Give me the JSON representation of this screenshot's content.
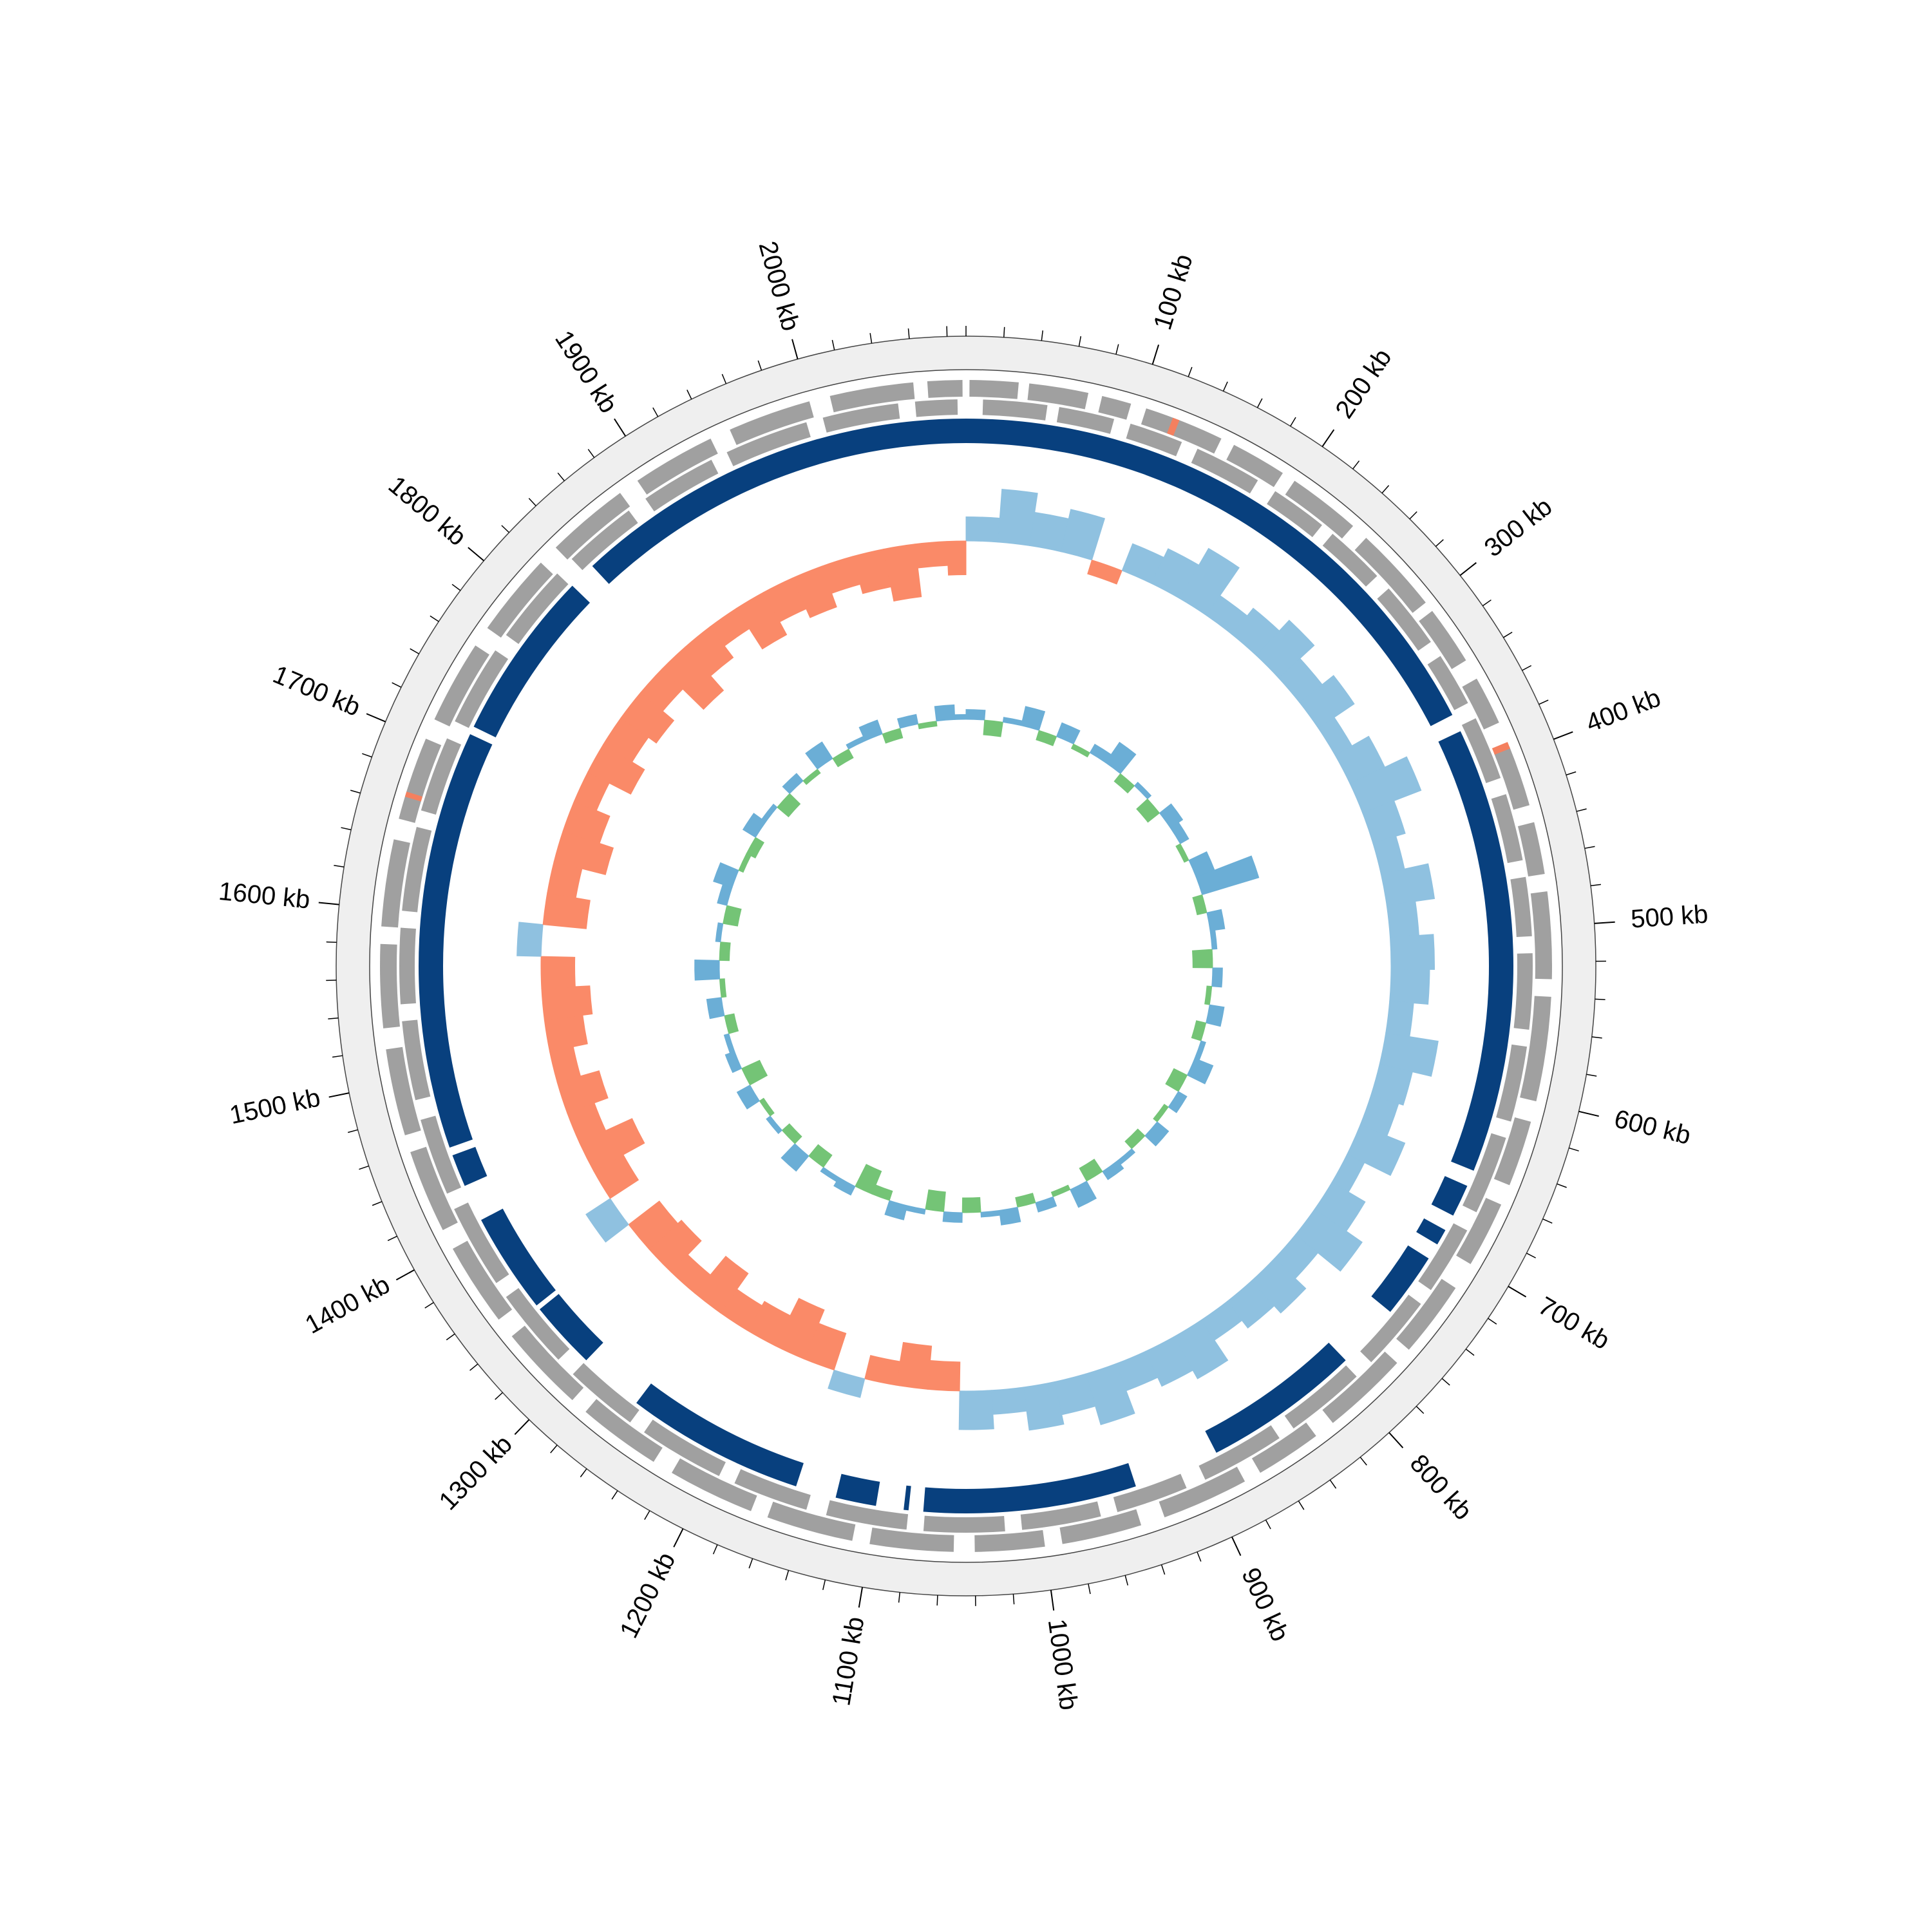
{
  "chart_data": {
    "type": "circos",
    "xlim": [
      0,
      2090
    ],
    "xticks": [
      {
        "value": 100,
        "label": "100 kb"
      },
      {
        "value": 200,
        "label": "200 kb"
      },
      {
        "value": 300,
        "label": "300 kb"
      },
      {
        "value": 400,
        "label": "400 kb"
      },
      {
        "value": 500,
        "label": "500 kb"
      },
      {
        "value": 600,
        "label": "600 kb"
      },
      {
        "value": 700,
        "label": "700 kb"
      },
      {
        "value": 800,
        "label": "800 kb"
      },
      {
        "value": 900,
        "label": "900 kb"
      },
      {
        "value": 1000,
        "label": "1000 kb"
      },
      {
        "value": 1100,
        "label": "1100 kb"
      },
      {
        "value": 1200,
        "label": "1200 kb"
      },
      {
        "value": 1300,
        "label": "1300 kb"
      },
      {
        "value": 1400,
        "label": "1400 kb"
      },
      {
        "value": 1500,
        "label": "1500 kb"
      },
      {
        "value": 1600,
        "label": "1600 kb"
      },
      {
        "value": 1700,
        "label": "1700 kb"
      },
      {
        "value": 1800,
        "label": "1800 kb"
      },
      {
        "value": 1900,
        "label": "1900 kb"
      },
      {
        "value": 2000,
        "label": "2000 kb"
      }
    ],
    "xminor_ticks": [
      0,
      20,
      40,
      60,
      80,
      120,
      140,
      160,
      180,
      220,
      240,
      260,
      280,
      320,
      340,
      360,
      380,
      420,
      440,
      460,
      480,
      520,
      540,
      560,
      580,
      620,
      640,
      660,
      680,
      720,
      740,
      760,
      780,
      820,
      840,
      860,
      880,
      920,
      940,
      960,
      980,
      1020,
      1040,
      1060,
      1080,
      1120,
      1140,
      1160,
      1180,
      1220,
      1240,
      1260,
      1280,
      1320,
      1340,
      1360,
      1380,
      1420,
      1440,
      1460,
      1480,
      1520,
      1540,
      1560,
      1580,
      1620,
      1640,
      1660,
      1680,
      1720,
      1740,
      1760,
      1780,
      1820,
      1840,
      1860,
      1880,
      1920,
      1940,
      1960,
      1980,
      2020,
      2040,
      2060,
      2080
    ],
    "features": {
      "color": "#a0a0a0",
      "highlight_color": "#f4805f",
      "forward": [
        [
          2,
          30
        ],
        [
          36,
          70
        ],
        [
          78,
          95
        ],
        [
          104,
          150
        ],
        [
          158,
          190
        ],
        [
          198,
          240
        ],
        [
          250,
          300
        ],
        [
          306,
          340
        ],
        [
          352,
          380
        ],
        [
          395,
          430
        ],
        [
          440,
          470
        ],
        [
          480,
          530
        ],
        [
          540,
          600
        ],
        [
          612,
          650
        ],
        [
          662,
          700
        ],
        [
          716,
          760
        ],
        [
          770,
          820
        ],
        [
          832,
          870
        ],
        [
          880,
          930
        ],
        [
          944,
          990
        ],
        [
          1000,
          1040
        ],
        [
          1052,
          1100
        ],
        [
          1110,
          1160
        ],
        [
          1170,
          1220
        ],
        [
          1232,
          1280
        ],
        [
          1290,
          1340
        ],
        [
          1352,
          1400
        ],
        [
          1412,
          1460
        ],
        [
          1470,
          1520
        ],
        [
          1532,
          1580
        ],
        [
          1590,
          1640
        ],
        [
          1652,
          1700
        ],
        [
          1712,
          1760
        ],
        [
          1772,
          1820
        ],
        [
          1832,
          1880
        ],
        [
          1892,
          1940
        ],
        [
          1952,
          2000
        ],
        [
          2012,
          2060
        ],
        [
          2068,
          2088
        ]
      ],
      "reverse": [
        [
          10,
          48
        ],
        [
          55,
          88
        ],
        [
          98,
          130
        ],
        [
          140,
          180
        ],
        [
          192,
          226
        ],
        [
          234,
          270
        ],
        [
          280,
          320
        ],
        [
          330,
          362
        ],
        [
          372,
          410
        ],
        [
          420,
          460
        ],
        [
          470,
          505
        ],
        [
          515,
          560
        ],
        [
          570,
          615
        ],
        [
          625,
          672
        ],
        [
          684,
          725
        ],
        [
          735,
          780
        ],
        [
          792,
          840
        ],
        [
          850,
          900
        ],
        [
          912,
          955
        ],
        [
          965,
          1012
        ],
        [
          1022,
          1070
        ],
        [
          1080,
          1128
        ],
        [
          1140,
          1185
        ],
        [
          1195,
          1246
        ],
        [
          1256,
          1300
        ],
        [
          1312,
          1360
        ],
        [
          1370,
          1420
        ],
        [
          1430,
          1476
        ],
        [
          1488,
          1535
        ],
        [
          1545,
          1590
        ],
        [
          1600,
          1650
        ],
        [
          1660,
          1705
        ],
        [
          1716,
          1764
        ],
        [
          1775,
          1822
        ],
        [
          1834,
          1878
        ],
        [
          1890,
          1935
        ],
        [
          1945,
          1995
        ],
        [
          2005,
          2050
        ],
        [
          2060,
          2085
        ]
      ],
      "highlight": [
        [
          120,
          124
        ],
        [
          392,
          396
        ],
        [
          1665,
          1668
        ]
      ]
    },
    "regions": {
      "color": "#08407e",
      "values": [
        [
          0,
          364
        ],
        [
          375,
          650
        ],
        [
          660,
          680
        ],
        [
          690,
          700
        ],
        [
          710,
          750
        ],
        [
          790,
          887
        ],
        [
          940,
          1071
        ],
        [
          1080,
          1083
        ],
        [
          1100,
          1125
        ],
        [
          1150,
          1260
        ],
        [
          1300,
          1342
        ],
        [
          1345,
          1407
        ],
        [
          1430,
          1450
        ],
        [
          1455,
          1713
        ],
        [
          1718,
          1823
        ],
        [
          1840,
          2090
        ]
      ]
    },
    "gc": {
      "x": [
        0,
        25,
        50,
        75,
        100,
        125,
        150,
        175,
        200,
        225,
        250,
        275,
        300,
        325,
        350,
        375,
        400,
        425,
        450,
        475,
        500,
        525,
        550,
        575,
        600,
        625,
        650,
        675,
        700,
        725,
        750,
        775,
        800,
        825,
        850,
        875,
        900,
        925,
        950,
        975,
        1000,
        1025,
        1050,
        1075,
        1100,
        1125,
        1150,
        1175,
        1200,
        1225,
        1250,
        1275,
        1300,
        1325,
        1350,
        1375,
        1400,
        1425,
        1450,
        1475,
        1500,
        1525,
        1550,
        1575,
        1600,
        1625,
        1650,
        1675,
        1700,
        1725,
        1750,
        1775,
        1800,
        1825,
        1850,
        1875,
        1900,
        1925,
        1950,
        1975,
        2000,
        2025,
        2050,
        2075
      ],
      "skew": {
        "ylim": [
          -0.2,
          0.2
        ],
        "pos_color": "#8fc1e0",
        "neg_color": "#fa8a68",
        "values": [
          0.05,
          0.11,
          0.07,
          0.09,
          -0.03,
          0.06,
          0.08,
          0.12,
          0.05,
          0.07,
          0.1,
          0.06,
          0.09,
          0.04,
          0.08,
          0.13,
          0.07,
          0.05,
          0.1,
          0.06,
          0.09,
          0.08,
          0.05,
          0.11,
          0.07,
          0.06,
          0.1,
          0.04,
          0.08,
          0.12,
          0.06,
          0.09,
          0.07,
          0.05,
          0.1,
          0.08,
          0.06,
          0.11,
          0.07,
          0.09,
          0.05,
          0.08,
          -0.06,
          -0.09,
          -0.05,
          0.04,
          -0.08,
          -0.11,
          -0.07,
          -0.06,
          -0.1,
          -0.05,
          -0.09,
          -0.08,
          0.06,
          -0.07,
          -0.12,
          -0.06,
          -0.09,
          -0.05,
          -0.08,
          -0.1,
          -0.07,
          0.05,
          -0.09,
          -0.06,
          -0.11,
          -0.08,
          -0.05,
          -0.1,
          -0.07,
          -0.09,
          -0.06,
          -0.12,
          -0.08,
          -0.05,
          -0.1,
          -0.07,
          -0.09,
          -0.06,
          -0.08,
          -0.11,
          -0.05,
          -0.07
        ]
      },
      "content": {
        "ylim": [
          -15,
          15
        ],
        "pos_color": "#6baed6",
        "neg_color": "#74c476",
        "values": [
          2,
          -3,
          1,
          4,
          -2,
          3,
          -1,
          2,
          5,
          -2,
          1,
          -3,
          3,
          2,
          -1,
          4,
          12,
          -2,
          3,
          1,
          -4,
          2,
          -1,
          3,
          -2,
          1,
          4,
          -3,
          2,
          -1,
          3,
          -2,
          1,
          2,
          -3,
          4,
          -1,
          2,
          -2,
          3,
          1,
          -3,
          2,
          -4,
          1,
          3,
          -2,
          -5,
          2,
          1,
          -3,
          4,
          -2,
          1,
          -1,
          3,
          -4,
          2,
          1,
          -2,
          3,
          -1,
          5,
          -2,
          1,
          -3,
          2,
          4,
          -1,
          -2,
          3,
          1,
          -3,
          2,
          -1,
          4,
          -2,
          1,
          3,
          -2,
          2,
          -1,
          3,
          1
        ]
      }
    }
  }
}
